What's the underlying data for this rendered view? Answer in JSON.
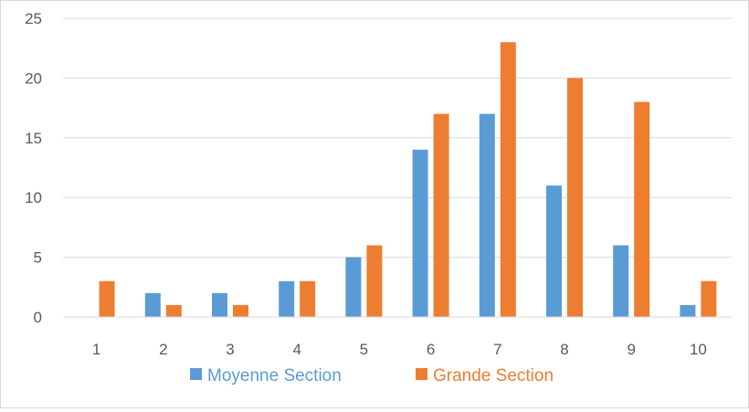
{
  "chart_data": {
    "type": "bar",
    "title": "",
    "xlabel": "",
    "ylabel": "",
    "categories": [
      "1",
      "2",
      "3",
      "4",
      "5",
      "6",
      "7",
      "8",
      "9",
      "10"
    ],
    "ylim": [
      0,
      25
    ],
    "yticks": [
      "0",
      "5",
      "10",
      "15",
      "20",
      "25"
    ],
    "grid": true,
    "legend_position": "bottom",
    "series": [
      {
        "name": "Moyenne Section",
        "color": "#5b9bd5",
        "values": [
          0,
          2,
          2,
          3,
          5,
          14,
          17,
          11,
          6,
          1
        ]
      },
      {
        "name": "Grande Section",
        "color": "#ed7d31",
        "values": [
          3,
          1,
          1,
          3,
          6,
          17,
          23,
          20,
          18,
          3
        ]
      }
    ]
  }
}
